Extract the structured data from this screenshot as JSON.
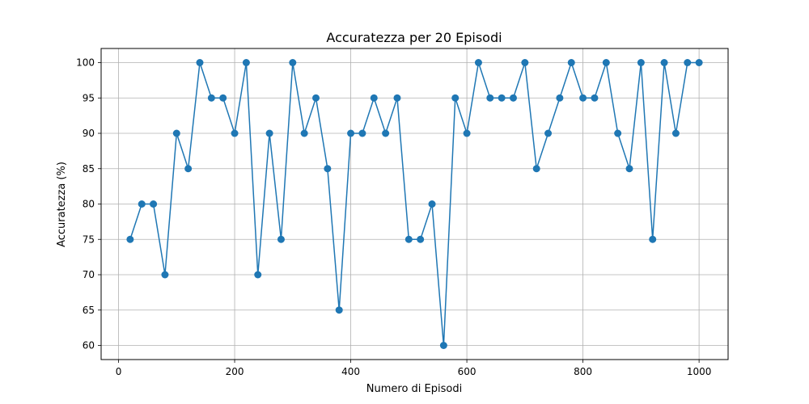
{
  "chart_data": {
    "type": "line",
    "title": "Accuratezza per 20 Episodi",
    "xlabel": "Numero di Episodi",
    "ylabel": "Accuratezza (%)",
    "xlim": [
      -30,
      1050
    ],
    "ylim": [
      58,
      102
    ],
    "xticks": [
      0,
      200,
      400,
      600,
      800,
      1000
    ],
    "yticks": [
      60,
      65,
      70,
      75,
      80,
      85,
      90,
      95,
      100
    ],
    "grid": true,
    "marker": "circle",
    "color": "#1f77b4",
    "series": [
      {
        "x": [
          20,
          40,
          60,
          80,
          100,
          120,
          140,
          160,
          180,
          200,
          220,
          240,
          260,
          280,
          300,
          320,
          340,
          360,
          380,
          400,
          420,
          440,
          460,
          480,
          500,
          520,
          540,
          560,
          580,
          600,
          620,
          640,
          660,
          680,
          700,
          720,
          740,
          760,
          780,
          800,
          820,
          840,
          860,
          880,
          900,
          920,
          940,
          960,
          980,
          1000
        ],
        "y": [
          75,
          80,
          80,
          70,
          90,
          85,
          100,
          95,
          95,
          90,
          100,
          70,
          90,
          75,
          100,
          90,
          95,
          85,
          65,
          90,
          90,
          95,
          90,
          95,
          75,
          75,
          80,
          60,
          95,
          90,
          100,
          95,
          95,
          95,
          100,
          85,
          90,
          95,
          100,
          95,
          95,
          100,
          90,
          85,
          100,
          75,
          100,
          90,
          100,
          100
        ]
      }
    ]
  }
}
